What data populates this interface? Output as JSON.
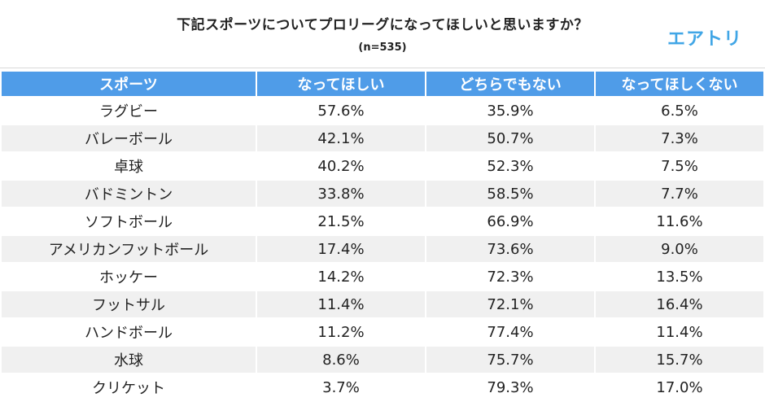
{
  "header": {
    "title": "下記スポーツについてプロリーグになってほしいと思いますか？",
    "subtitle": "(n=535)",
    "logo_text": "エアトリ"
  },
  "colors": {
    "header_bg": "#4f9ce8",
    "logo": "#41a6e6",
    "alt_row": "#f0f0f0"
  },
  "chart_data": {
    "type": "table",
    "title": "下記スポーツについてプロリーグになってほしいと思いますか？",
    "subtitle": "(n=535)",
    "columns": [
      "スポーツ",
      "なってほしい",
      "どちらでもない",
      "なってほしくない"
    ],
    "rows": [
      {
        "sport": "ラグビー",
        "values": [
          "57.6%",
          "35.9%",
          "6.5%"
        ]
      },
      {
        "sport": "バレーボール",
        "values": [
          "42.1%",
          "50.7%",
          "7.3%"
        ]
      },
      {
        "sport": "卓球",
        "values": [
          "40.2%",
          "52.3%",
          "7.5%"
        ]
      },
      {
        "sport": "バドミントン",
        "values": [
          "33.8%",
          "58.5%",
          "7.7%"
        ]
      },
      {
        "sport": "ソフトボール",
        "values": [
          "21.5%",
          "66.9%",
          "11.6%"
        ]
      },
      {
        "sport": "アメリカンフットボール",
        "values": [
          "17.4%",
          "73.6%",
          "9.0%"
        ]
      },
      {
        "sport": "ホッケー",
        "values": [
          "14.2%",
          "72.3%",
          "13.5%"
        ]
      },
      {
        "sport": "フットサル",
        "values": [
          "11.4%",
          "72.1%",
          "16.4%"
        ]
      },
      {
        "sport": "ハンドボール",
        "values": [
          "11.2%",
          "77.4%",
          "11.4%"
        ]
      },
      {
        "sport": "水球",
        "values": [
          "8.6%",
          "75.7%",
          "15.7%"
        ]
      },
      {
        "sport": "クリケット",
        "values": [
          "3.7%",
          "79.3%",
          "17.0%"
        ]
      }
    ]
  }
}
